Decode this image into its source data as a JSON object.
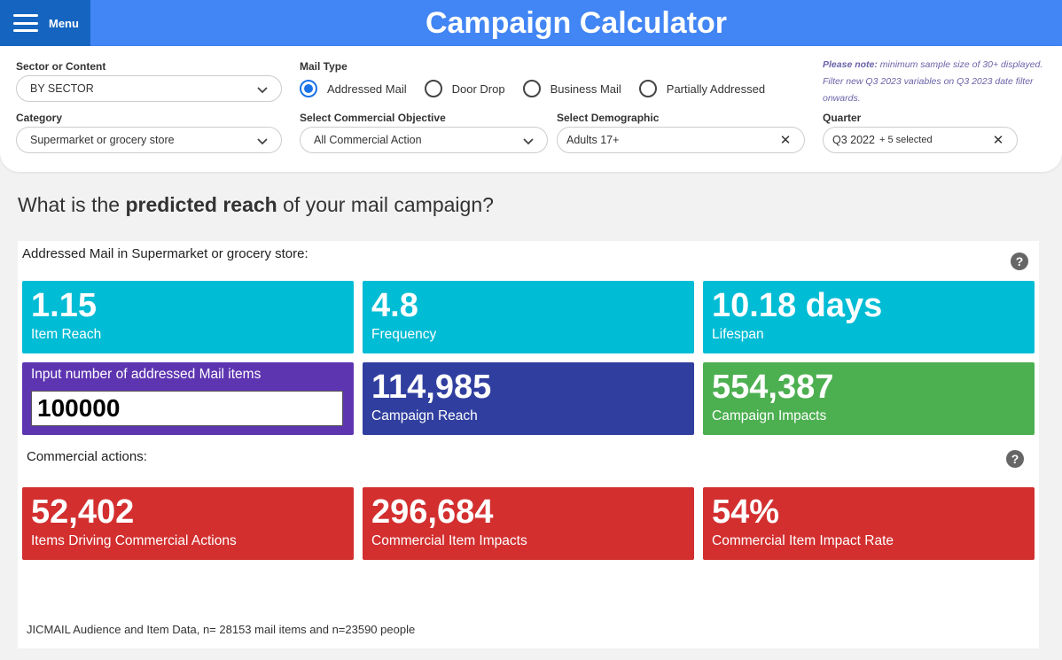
{
  "header": {
    "menu_label": "Menu",
    "title": "Campaign Calculator"
  },
  "filters": {
    "sector": {
      "label": "Sector or Content",
      "value": "BY SECTOR"
    },
    "mail_type": {
      "label": "Mail Type",
      "options": [
        "Addressed Mail",
        "Door Drop",
        "Business Mail",
        "Partially Addressed"
      ],
      "selected": "Addressed Mail"
    },
    "note": {
      "bold": "Please note:",
      "text": " minimum sample size of 30+ displayed. Filter new Q3 2023 variables on Q3 2023 date filter onwards."
    },
    "category": {
      "label": "Category",
      "value": "Supermarket or grocery store"
    },
    "objective": {
      "label": "Select Commercial Objective",
      "value": "All Commercial Action"
    },
    "demographic": {
      "label": "Select Demographic",
      "value": "Adults 17+"
    },
    "quarter": {
      "label": "Quarter",
      "value": "Q3 2022",
      "extra": "+ 5 selected"
    }
  },
  "question": {
    "pre": "What is the ",
    "bold": "predicted reach",
    "post": " of your mail campaign?"
  },
  "results": {
    "heading": "Addressed Mail in Supermarket or grocery store:",
    "item_reach": {
      "value": "1.15",
      "label": "Item Reach"
    },
    "frequency": {
      "value": "4.8",
      "label": "Frequency"
    },
    "lifespan": {
      "value": "10.18 days",
      "label": "Lifespan"
    },
    "input": {
      "label": "Input number of addressed Mail items",
      "value": "100000"
    },
    "campaign_reach": {
      "value": "114,985",
      "label": "Campaign Reach"
    },
    "campaign_impacts": {
      "value": "554,387",
      "label": "Campaign Impacts"
    },
    "commercial_heading": "Commercial actions:",
    "items_driving": {
      "value": "52,402",
      "label": "Items Driving Commercial Actions"
    },
    "item_impacts": {
      "value": "296,684",
      "label": "Commercial Item Impacts"
    },
    "impact_rate": {
      "value": "54%",
      "label": "Commercial Item Impact Rate"
    },
    "help_icon": "?",
    "footer": "JICMAIL Audience and Item Data, n= 28153 mail items and n=23590 people"
  },
  "colors": {
    "header": "#4285f4",
    "menu": "#1565c0",
    "cyan": "#00bcd4",
    "purple": "#5e35b1",
    "indigo": "#303f9f",
    "green": "#4caf50",
    "red": "#d32f2f",
    "radio_selected": "#1a73e8"
  },
  "icons": {
    "menu": "hamburger-icon",
    "dropdown": "chevron-down-icon",
    "clear": "close-icon",
    "help": "help-icon"
  }
}
